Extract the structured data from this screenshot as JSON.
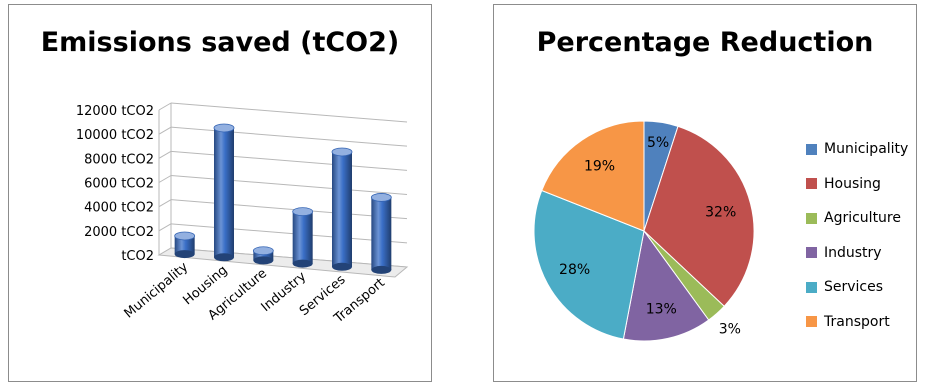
{
  "colors": {
    "bar": "#3a6fc7",
    "municipality": "#4f81bd",
    "housing": "#c0504d",
    "agriculture": "#9bbb59",
    "industry": "#8064a2",
    "services": "#4bacc6",
    "transport": "#f79646"
  },
  "chart_data": [
    {
      "type": "bar",
      "title": "Emissions saved (tCO2)",
      "categories": [
        "Municipality",
        "Housing",
        "Agriculture",
        "Industry",
        "Services",
        "Transport"
      ],
      "values": [
        1500,
        10700,
        800,
        4300,
        9500,
        6000
      ],
      "ylim": [
        0,
        12000
      ],
      "ytick_labels": [
        "tCO2",
        "2000 tCO2",
        "4000 tCO2",
        "6000 tCO2",
        "8000 tCO2",
        "10000 tCO2",
        "12000 tCO2"
      ],
      "grid": true,
      "style": "3d-cylinder"
    },
    {
      "type": "pie",
      "title": "Percentage Reduction",
      "labels": [
        "Municipality",
        "Housing",
        "Agriculture",
        "Industry",
        "Services",
        "Transport"
      ],
      "values": [
        5,
        32,
        3,
        13,
        28,
        19
      ],
      "value_labels": [
        "5%",
        "32%",
        "3%",
        "13%",
        "28%",
        "19%"
      ],
      "legend_position": "right"
    }
  ]
}
